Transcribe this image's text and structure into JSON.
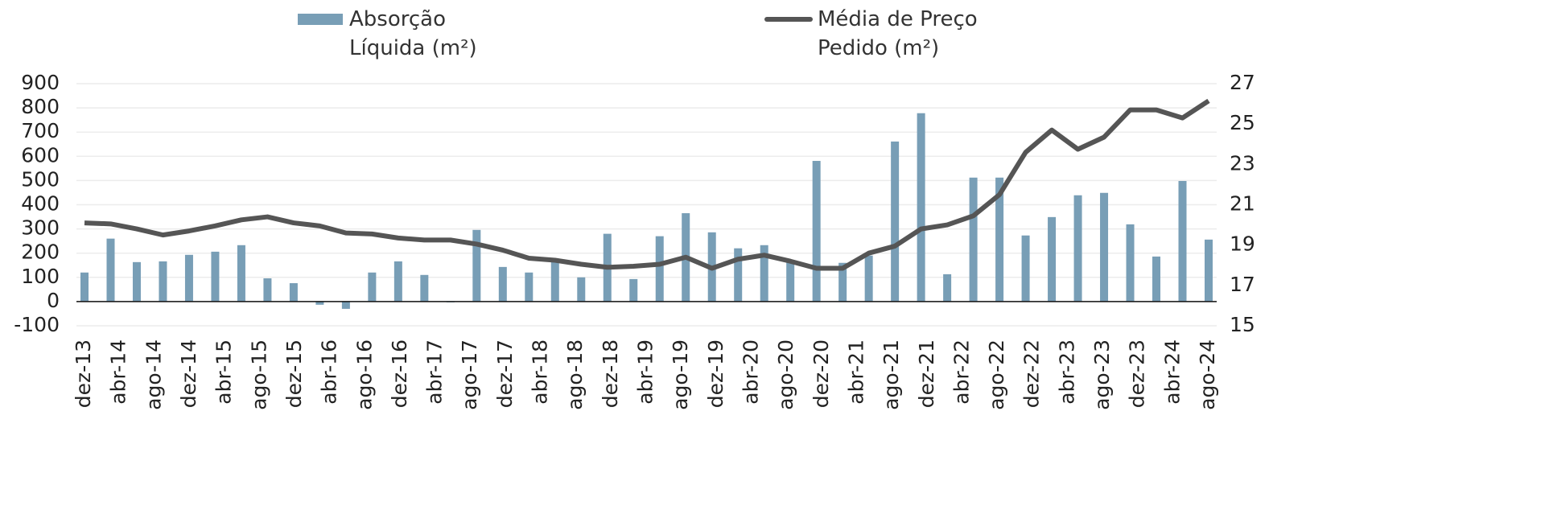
{
  "chart_data": {
    "type": "bar-line",
    "categories": [
      null,
      null,
      null,
      null,
      null,
      null,
      null,
      null,
      null,
      null,
      null,
      null,
      null,
      null,
      null,
      null,
      null,
      null,
      null,
      null,
      null,
      null,
      null,
      null,
      null,
      null,
      null,
      null,
      null,
      null,
      null,
      null,
      null,
      null,
      null,
      null,
      null,
      null,
      null,
      null,
      null,
      null,
      null,
      null
    ],
    "xticks": [
      "dez-13",
      "abr-14",
      "ago-14",
      "dez-14",
      "abr-15",
      "ago-15",
      "dez-15",
      "abr-16",
      "ago-16",
      "dez-16",
      "abr-17",
      "ago-17",
      "dez-17",
      "abr-18",
      "ago-18",
      "dez-18",
      "abr-19",
      "ago-19",
      "dez-19",
      "abr-20",
      "ago-20",
      "dez-20",
      "abr-21",
      "ago-21",
      "dez-21",
      "abr-22",
      "ago-22",
      "dez-22",
      "abr-23",
      "ago-23",
      "dez-23",
      "abr-24",
      "ago-24"
    ],
    "series": [
      {
        "name": "Absorção Líquida (m²)",
        "type": "bar",
        "color": "#789eb6",
        "values": [
          120,
          260,
          163,
          166,
          193,
          206,
          233,
          96,
          76,
          -13,
          -30,
          120,
          166,
          110,
          -3,
          296,
          143,
          120,
          166,
          100,
          280,
          93,
          270,
          365,
          286,
          220,
          233,
          166,
          581,
          160,
          190,
          661,
          778,
          113,
          512,
          512,
          273,
          349,
          439,
          449,
          319,
          186,
          498,
          256
        ]
      },
      {
        "name": "Média de Preço Pedido (m²)",
        "type": "line",
        "color": "#555555",
        "axis": "y2",
        "values": [
          20.1,
          20.05,
          19.8,
          19.5,
          19.7,
          19.95,
          20.25,
          20.4,
          20.1,
          19.95,
          19.6,
          19.55,
          19.35,
          19.25,
          19.25,
          19.05,
          18.75,
          18.35,
          18.25,
          18.05,
          17.9,
          17.95,
          18.05,
          18.4,
          17.85,
          18.3,
          18.5,
          18.2,
          17.85,
          17.85,
          18.6,
          18.95,
          19.8,
          20.0,
          20.45,
          21.5,
          23.6,
          24.7,
          23.75,
          24.35,
          25.7,
          25.7,
          25.3,
          26.15
        ]
      }
    ],
    "ylim": [
      -100,
      900
    ],
    "yticks": [
      -100,
      0,
      100,
      200,
      300,
      400,
      500,
      600,
      700,
      800,
      900
    ],
    "y2lim": [
      15,
      27
    ],
    "y2ticks": [
      15,
      17,
      19,
      21,
      23,
      25,
      27
    ],
    "grid": true
  }
}
